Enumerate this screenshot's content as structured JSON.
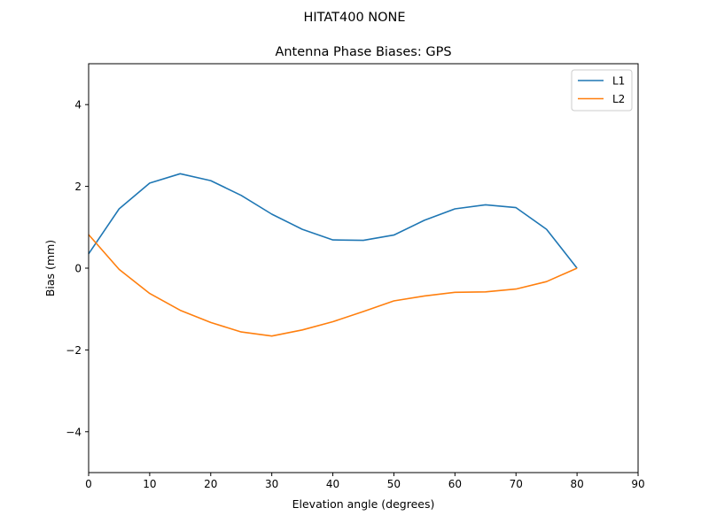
{
  "suptitle": "HITAT400        NONE",
  "chart_data": {
    "type": "line",
    "title": "Antenna Phase Biases: GPS",
    "xlabel": "Elevation angle (degrees)",
    "ylabel": "Bias (mm)",
    "xlim": [
      0,
      90
    ],
    "ylim": [
      -5,
      5
    ],
    "xticks": [
      0,
      10,
      20,
      30,
      40,
      50,
      60,
      70,
      80,
      90
    ],
    "yticks": [
      -4,
      -2,
      0,
      2,
      4
    ],
    "ytick_labels": [
      "−4",
      "−2",
      "0",
      "2",
      "4"
    ],
    "grid": false,
    "legend_position": "upper right",
    "x": [
      0,
      5,
      10,
      15,
      20,
      25,
      30,
      35,
      40,
      45,
      50,
      55,
      60,
      65,
      70,
      75,
      80
    ],
    "series": [
      {
        "name": "L1",
        "color": "#1f77b4",
        "values": [
          0.35,
          1.45,
          2.08,
          2.31,
          2.14,
          1.78,
          1.32,
          0.95,
          0.69,
          0.68,
          0.81,
          1.17,
          1.45,
          1.55,
          1.48,
          0.95,
          0.0
        ]
      },
      {
        "name": "L2",
        "color": "#ff7f0e",
        "values": [
          0.82,
          -0.03,
          -0.62,
          -1.03,
          -1.33,
          -1.56,
          -1.66,
          -1.51,
          -1.31,
          -1.06,
          -0.8,
          -0.68,
          -0.59,
          -0.58,
          -0.51,
          -0.33,
          0.0
        ]
      }
    ]
  }
}
